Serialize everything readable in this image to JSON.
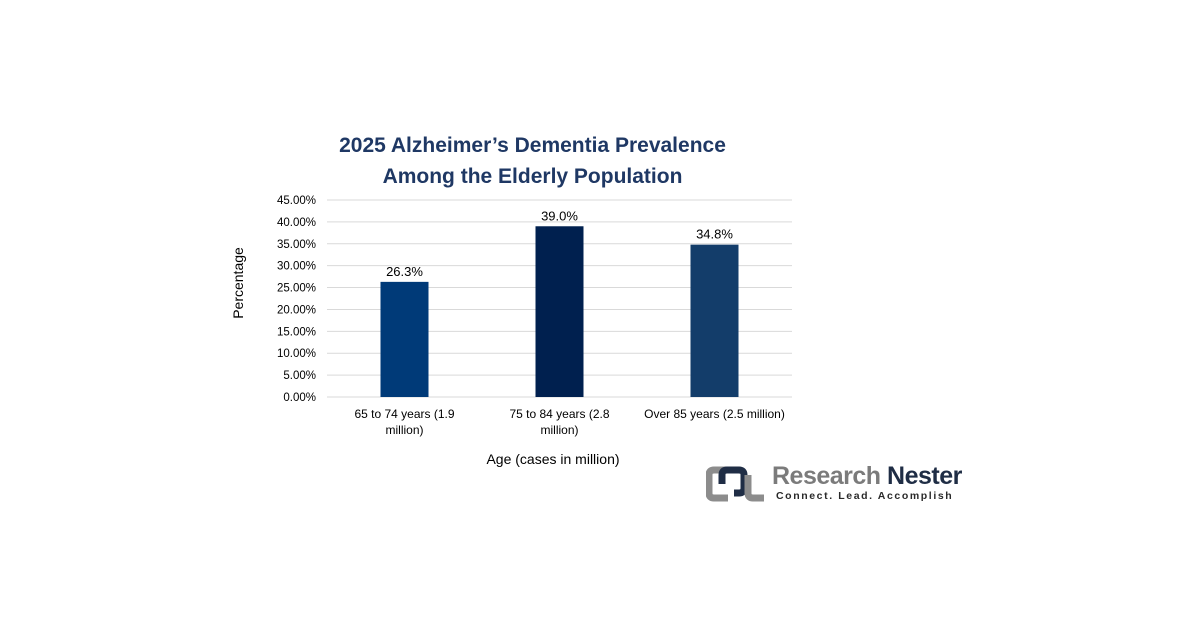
{
  "chart_data": {
    "type": "bar",
    "title": [
      "2025 Alzheimer’s Dementia Prevalence",
      "Among the Elderly Population"
    ],
    "categories": [
      [
        "65 to 74 years (1.9",
        "million)"
      ],
      [
        "75 to 84 years (2.8",
        "million)"
      ],
      [
        "Over 85 years (2.5 million)"
      ]
    ],
    "values": [
      26.3,
      39.0,
      34.8
    ],
    "data_labels": [
      "26.3%",
      "39.0%",
      "34.8%"
    ],
    "bar_colors": [
      "#003a78",
      "#00204f",
      "#133d6a"
    ],
    "xlabel": "Age (cases in million)",
    "ylabel": "Percentage",
    "ylim": [
      0,
      45
    ],
    "yticks": [
      "0.00%",
      "5.00%",
      "10.00%",
      "15.00%",
      "20.00%",
      "25.00%",
      "30.00%",
      "35.00%",
      "40.00%",
      "45.00%"
    ],
    "grid": true,
    "legend": "none"
  },
  "logo": {
    "word1": "Research",
    "word2": "Nester",
    "tagline": "Connect. Lead. Accomplish",
    "mark_colors": [
      "#8c8c8c",
      "#1f2d45"
    ]
  },
  "colors": {
    "title": "#1f3864",
    "grid": "#d9d9d9",
    "axis_text": "#404040"
  }
}
